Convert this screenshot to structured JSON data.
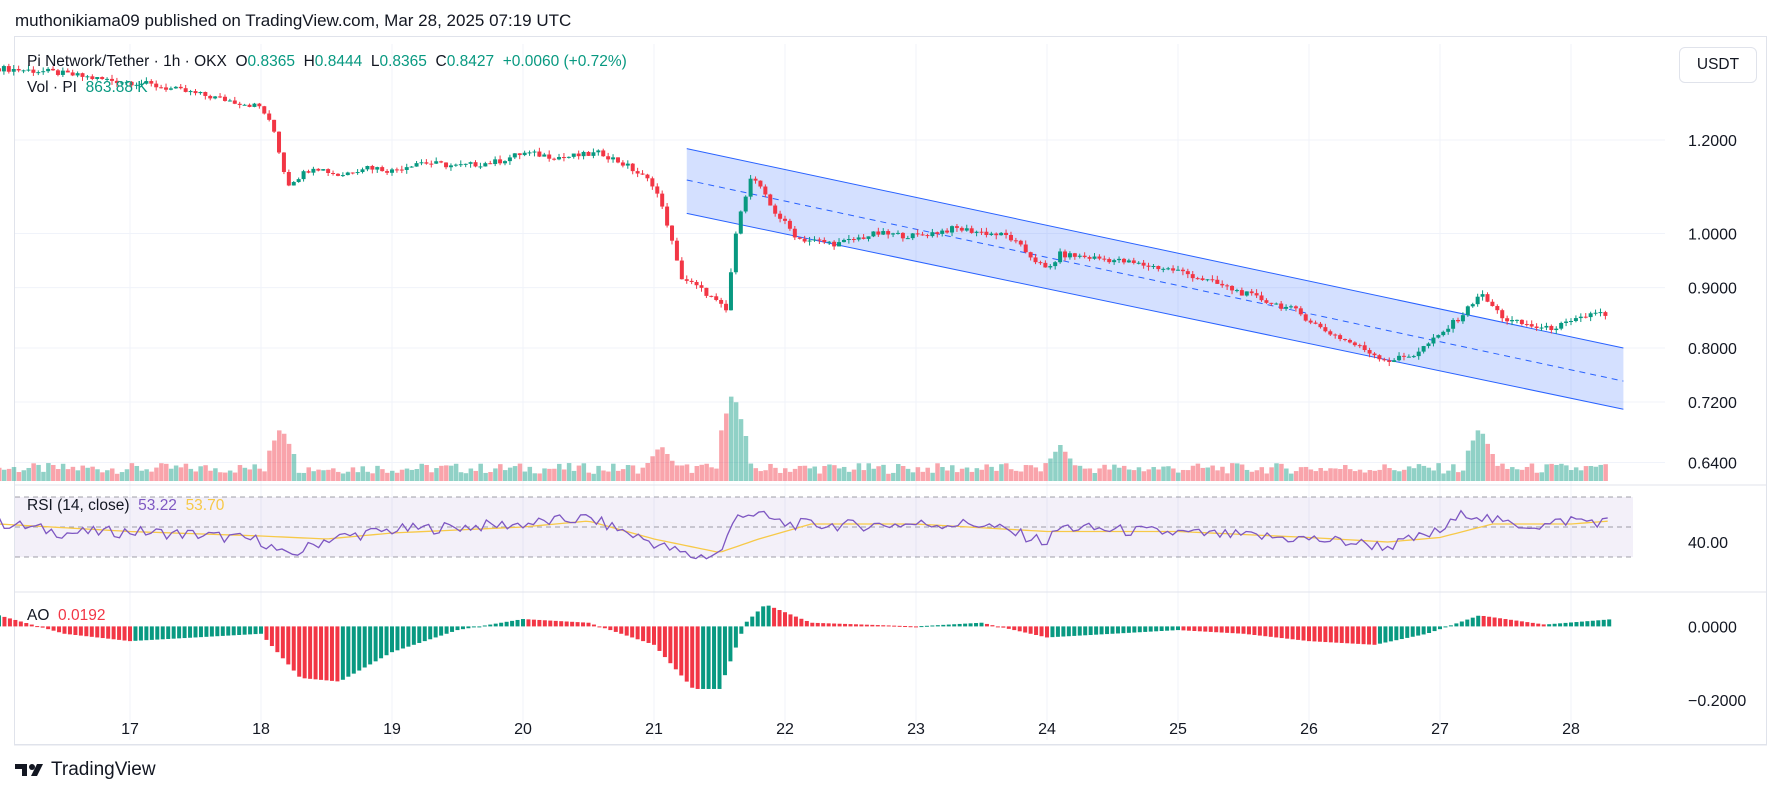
{
  "publisher": "muthonikiama09 published on TradingView.com, Mar 28, 2025 07:19 UTC",
  "brand": "TradingView",
  "currency_button": "USDT",
  "legend": {
    "symbol": "Pi Network/Tether · 1h · OKX",
    "open_label": "O",
    "open": "0.8365",
    "high_label": "H",
    "high": "0.8444",
    "low_label": "L",
    "low": "0.8365",
    "close_label": "C",
    "close": "0.8427",
    "change": "+0.0060 (+0.72%)",
    "vol_label": "Vol · PI",
    "vol": "863.88 K"
  },
  "rsi": {
    "label": "RSI (14, close)",
    "value": "53.22",
    "ma": "53.70",
    "axis_label": "40.00"
  },
  "ao": {
    "label": "AO",
    "value": "0.0192",
    "axis_labels": [
      "0.0000",
      "−0.2000"
    ]
  },
  "colors": {
    "up": "#089981",
    "down": "#f23645",
    "channel": "#2962ff",
    "rsi_line": "#7e57c2",
    "rsi_ma": "#f7c948"
  },
  "chart_data": {
    "type": "candlestick",
    "title": "Pi Network/Tether · 1h · OKX",
    "price_axis": {
      "scale": "log",
      "ticks": [
        "1.2000",
        "1.0000",
        "0.9000",
        "0.8000",
        "0.7200",
        "0.6400"
      ]
    },
    "x_ticks": [
      "17",
      "18",
      "19",
      "20",
      "21",
      "22",
      "23",
      "24",
      "25",
      "26",
      "27",
      "28"
    ],
    "close_path": [
      {
        "day": 16.0,
        "price": 1.38
      },
      {
        "day": 16.4,
        "price": 1.37
      },
      {
        "day": 16.8,
        "price": 1.35
      },
      {
        "day": 17.1,
        "price": 1.34
      },
      {
        "day": 17.4,
        "price": 1.32
      },
      {
        "day": 17.7,
        "price": 1.3
      },
      {
        "day": 18.0,
        "price": 1.28
      },
      {
        "day": 18.1,
        "price": 1.22
      },
      {
        "day": 18.2,
        "price": 1.1
      },
      {
        "day": 18.4,
        "price": 1.14
      },
      {
        "day": 18.6,
        "price": 1.12
      },
      {
        "day": 18.8,
        "price": 1.14
      },
      {
        "day": 19.0,
        "price": 1.13
      },
      {
        "day": 19.2,
        "price": 1.15
      },
      {
        "day": 19.5,
        "price": 1.14
      },
      {
        "day": 19.8,
        "price": 1.15
      },
      {
        "day": 20.0,
        "price": 1.17
      },
      {
        "day": 20.3,
        "price": 1.16
      },
      {
        "day": 20.6,
        "price": 1.17
      },
      {
        "day": 20.8,
        "price": 1.14
      },
      {
        "day": 21.0,
        "price": 1.1
      },
      {
        "day": 21.1,
        "price": 1.02
      },
      {
        "day": 21.2,
        "price": 0.92
      },
      {
        "day": 21.4,
        "price": 0.89
      },
      {
        "day": 21.55,
        "price": 0.86
      },
      {
        "day": 21.65,
        "price": 1.04
      },
      {
        "day": 21.75,
        "price": 1.12
      },
      {
        "day": 21.9,
        "price": 1.05
      },
      {
        "day": 22.1,
        "price": 0.99
      },
      {
        "day": 22.4,
        "price": 0.98
      },
      {
        "day": 22.7,
        "price": 1.0
      },
      {
        "day": 23.0,
        "price": 0.995
      },
      {
        "day": 23.3,
        "price": 1.01
      },
      {
        "day": 23.7,
        "price": 0.995
      },
      {
        "day": 24.0,
        "price": 0.93
      },
      {
        "day": 24.1,
        "price": 0.96
      },
      {
        "day": 24.5,
        "price": 0.95
      },
      {
        "day": 25.0,
        "price": 0.93
      },
      {
        "day": 25.5,
        "price": 0.89
      },
      {
        "day": 25.9,
        "price": 0.86
      },
      {
        "day": 26.1,
        "price": 0.83
      },
      {
        "day": 26.4,
        "price": 0.8
      },
      {
        "day": 26.6,
        "price": 0.78
      },
      {
        "day": 26.8,
        "price": 0.79
      },
      {
        "day": 27.0,
        "price": 0.82
      },
      {
        "day": 27.2,
        "price": 0.86
      },
      {
        "day": 27.3,
        "price": 0.89
      },
      {
        "day": 27.5,
        "price": 0.845
      },
      {
        "day": 27.8,
        "price": 0.83
      },
      {
        "day": 28.0,
        "price": 0.84
      },
      {
        "day": 28.2,
        "price": 0.86
      },
      {
        "day": 28.3,
        "price": 0.843
      }
    ],
    "channel": {
      "upper": [
        {
          "day": 21.25,
          "price": 1.18
        },
        {
          "day": 28.4,
          "price": 0.8
        }
      ],
      "middle": [
        {
          "day": 21.25,
          "price": 1.11
        },
        {
          "day": 28.4,
          "price": 0.75
        }
      ],
      "lower": [
        {
          "day": 21.25,
          "price": 1.04
        },
        {
          "day": 28.4,
          "price": 0.71
        }
      ]
    },
    "rsi_range": [
      30,
      70
    ],
    "rsi_points": [
      {
        "day": 16.0,
        "v": 53
      },
      {
        "day": 16.5,
        "v": 46
      },
      {
        "day": 17.0,
        "v": 47
      },
      {
        "day": 17.5,
        "v": 45
      },
      {
        "day": 18.0,
        "v": 41
      },
      {
        "day": 18.2,
        "v": 30
      },
      {
        "day": 18.5,
        "v": 42
      },
      {
        "day": 19.0,
        "v": 48
      },
      {
        "day": 19.5,
        "v": 50
      },
      {
        "day": 20.0,
        "v": 52
      },
      {
        "day": 20.5,
        "v": 56
      },
      {
        "day": 20.8,
        "v": 46
      },
      {
        "day": 21.1,
        "v": 36
      },
      {
        "day": 21.3,
        "v": 30
      },
      {
        "day": 21.5,
        "v": 32
      },
      {
        "day": 21.65,
        "v": 60
      },
      {
        "day": 21.8,
        "v": 58
      },
      {
        "day": 22.0,
        "v": 52
      },
      {
        "day": 22.5,
        "v": 51
      },
      {
        "day": 23.0,
        "v": 52
      },
      {
        "day": 23.5,
        "v": 52
      },
      {
        "day": 24.0,
        "v": 40
      },
      {
        "day": 24.1,
        "v": 50
      },
      {
        "day": 24.5,
        "v": 48
      },
      {
        "day": 25.0,
        "v": 46
      },
      {
        "day": 25.5,
        "v": 44
      },
      {
        "day": 26.0,
        "v": 42
      },
      {
        "day": 26.3,
        "v": 40
      },
      {
        "day": 26.6,
        "v": 37
      },
      {
        "day": 27.0,
        "v": 47
      },
      {
        "day": 27.2,
        "v": 60
      },
      {
        "day": 27.5,
        "v": 52
      },
      {
        "day": 27.8,
        "v": 51
      },
      {
        "day": 28.0,
        "v": 55
      },
      {
        "day": 28.3,
        "v": 53
      }
    ],
    "rsi_ma_points": [
      {
        "day": 16.0,
        "v": 52
      },
      {
        "day": 17.0,
        "v": 47
      },
      {
        "day": 18.0,
        "v": 44
      },
      {
        "day": 18.5,
        "v": 42
      },
      {
        "day": 19.0,
        "v": 46
      },
      {
        "day": 20.0,
        "v": 50
      },
      {
        "day": 20.5,
        "v": 54
      },
      {
        "day": 21.0,
        "v": 42
      },
      {
        "day": 21.5,
        "v": 33
      },
      {
        "day": 21.8,
        "v": 42
      },
      {
        "day": 22.2,
        "v": 52
      },
      {
        "day": 23.0,
        "v": 52
      },
      {
        "day": 24.0,
        "v": 47
      },
      {
        "day": 25.0,
        "v": 47
      },
      {
        "day": 26.0,
        "v": 43
      },
      {
        "day": 26.6,
        "v": 40
      },
      {
        "day": 27.0,
        "v": 43
      },
      {
        "day": 27.4,
        "v": 52
      },
      {
        "day": 28.0,
        "v": 52
      },
      {
        "day": 28.3,
        "v": 54
      }
    ],
    "ao_range": [
      -0.2,
      0.05
    ],
    "ao_points": [
      {
        "day": 16.0,
        "v": 0.03
      },
      {
        "day": 16.5,
        "v": -0.02
      },
      {
        "day": 17.0,
        "v": -0.04
      },
      {
        "day": 17.5,
        "v": -0.03
      },
      {
        "day": 18.0,
        "v": -0.02
      },
      {
        "day": 18.3,
        "v": -0.14
      },
      {
        "day": 18.6,
        "v": -0.15
      },
      {
        "day": 19.0,
        "v": -0.07
      },
      {
        "day": 19.5,
        "v": -0.01
      },
      {
        "day": 20.0,
        "v": 0.02
      },
      {
        "day": 20.5,
        "v": 0.01
      },
      {
        "day": 21.0,
        "v": -0.05
      },
      {
        "day": 21.3,
        "v": -0.17
      },
      {
        "day": 21.5,
        "v": -0.17
      },
      {
        "day": 21.7,
        "v": 0.01
      },
      {
        "day": 21.85,
        "v": 0.06
      },
      {
        "day": 22.2,
        "v": 0.01
      },
      {
        "day": 23.0,
        "v": 0.0
      },
      {
        "day": 23.5,
        "v": 0.01
      },
      {
        "day": 24.0,
        "v": -0.03
      },
      {
        "day": 24.5,
        "v": -0.02
      },
      {
        "day": 25.0,
        "v": -0.01
      },
      {
        "day": 25.5,
        "v": -0.02
      },
      {
        "day": 26.0,
        "v": -0.04
      },
      {
        "day": 26.5,
        "v": -0.05
      },
      {
        "day": 26.9,
        "v": -0.02
      },
      {
        "day": 27.3,
        "v": 0.03
      },
      {
        "day": 27.8,
        "v": 0.005
      },
      {
        "day": 28.3,
        "v": 0.0192
      }
    ],
    "volume_spikes": [
      {
        "day": 18.15,
        "v": 0.6
      },
      {
        "day": 21.05,
        "v": 0.4
      },
      {
        "day": 21.6,
        "v": 1.0
      },
      {
        "day": 24.1,
        "v": 0.4
      },
      {
        "day": 27.3,
        "v": 0.6
      }
    ]
  }
}
